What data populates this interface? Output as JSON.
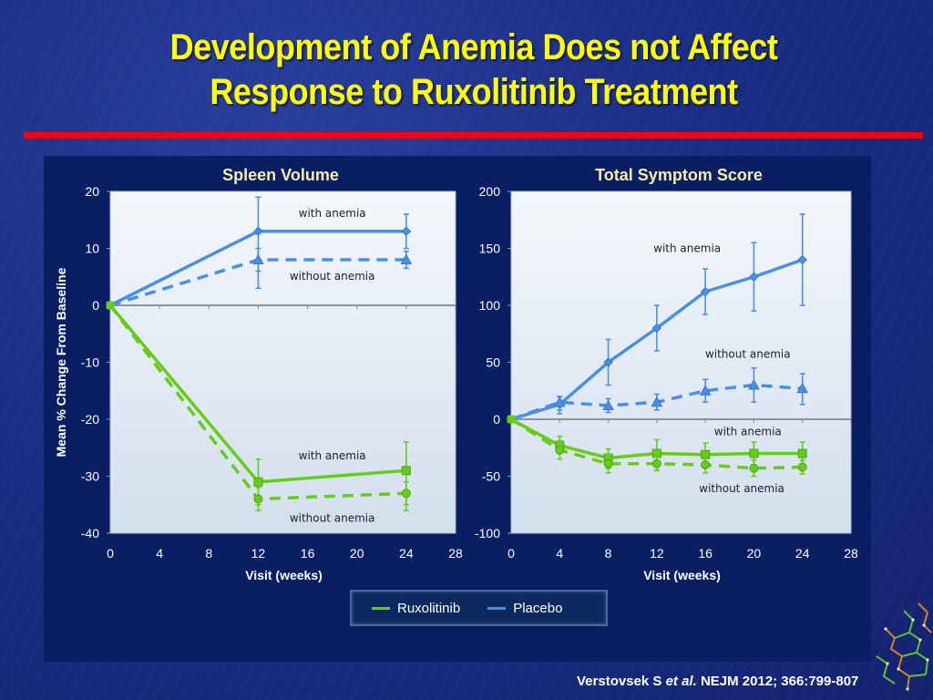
{
  "slide": {
    "title_line1": "Development of Anemia Does not Affect",
    "title_line2": "Response to Ruxolitinib Treatment",
    "citation_author": "Verstovsek S",
    "citation_etal": "et al.",
    "citation_journal": "NEJM 2012; 366:799-807",
    "colors": {
      "background": "#1b2e86",
      "title": "#ffff00",
      "rule": "#ff0000",
      "ruxolitinib": "#66cc1a",
      "placebo": "#4a90e2",
      "chart_title": "#f5eeb0"
    }
  },
  "legend": {
    "items": [
      {
        "label": "Ruxolitinib",
        "color": "#66cc1a"
      },
      {
        "label": "Placebo",
        "color": "#4a90e2"
      }
    ]
  },
  "chart_data": [
    {
      "type": "line",
      "title": "Spleen Volume",
      "xlabel": "Visit (weeks)",
      "ylabel": "Mean % Change From Baseline",
      "xlim": [
        0,
        28
      ],
      "ylim": [
        -40,
        20
      ],
      "xticks": [
        0,
        4,
        8,
        12,
        16,
        20,
        24,
        28
      ],
      "yticks": [
        20,
        10,
        0,
        -10,
        -20,
        -30,
        -40
      ],
      "series": [
        {
          "name": "Placebo with anemia",
          "group": "Placebo",
          "style": "solid",
          "marker": "diamond",
          "x": [
            0,
            12,
            24
          ],
          "y": [
            0,
            13,
            13
          ],
          "err_low": [
            0,
            3,
            10
          ],
          "err_high": [
            0,
            19,
            16
          ]
        },
        {
          "name": "Placebo without anemia",
          "group": "Placebo",
          "style": "dashed",
          "marker": "triangle",
          "x": [
            0,
            12,
            24
          ],
          "y": [
            0,
            8,
            8
          ],
          "err_low": [
            0,
            6,
            6.5
          ],
          "err_high": [
            0,
            10,
            9.5
          ]
        },
        {
          "name": "Ruxolitinib with anemia",
          "group": "Ruxolitinib",
          "style": "solid",
          "marker": "square",
          "x": [
            0,
            12,
            24
          ],
          "y": [
            0,
            -31,
            -29
          ],
          "err_low": [
            0,
            -35,
            -35
          ],
          "err_high": [
            0,
            -27,
            -24
          ]
        },
        {
          "name": "Ruxolitinib without anemia",
          "group": "Ruxolitinib",
          "style": "dashed",
          "marker": "circle",
          "x": [
            0,
            12,
            24
          ],
          "y": [
            0,
            -34,
            -33
          ],
          "err_low": [
            0,
            -36,
            -36
          ],
          "err_high": [
            0,
            -32,
            -31
          ]
        }
      ],
      "annotations": [
        {
          "text": "with anemia",
          "x": 18,
          "y": 15.5
        },
        {
          "text": "without anemia",
          "x": 18,
          "y": 4.5
        },
        {
          "text": "with anemia",
          "x": 18,
          "y": -27
        },
        {
          "text": "without anemia",
          "x": 18,
          "y": -38
        }
      ],
      "grid": false,
      "legend": "bottom-center"
    },
    {
      "type": "line",
      "title": "Total Symptom Score",
      "xlabel": "Visit (weeks)",
      "ylabel": "",
      "xlim": [
        0,
        28
      ],
      "ylim": [
        -100,
        200
      ],
      "xticks": [
        0,
        4,
        8,
        12,
        16,
        20,
        24,
        28
      ],
      "yticks": [
        200,
        150,
        100,
        50,
        0,
        -50,
        -100
      ],
      "series": [
        {
          "name": "Placebo with anemia",
          "group": "Placebo",
          "style": "solid",
          "marker": "diamond",
          "x": [
            0,
            4,
            8,
            12,
            16,
            20,
            24
          ],
          "y": [
            0,
            13,
            50,
            80,
            112,
            125,
            140
          ],
          "err_low": [
            0,
            5,
            30,
            60,
            92,
            95,
            100
          ],
          "err_high": [
            0,
            20,
            70,
            100,
            132,
            155,
            180
          ]
        },
        {
          "name": "Placebo without anemia",
          "group": "Placebo",
          "style": "dashed",
          "marker": "triangle",
          "x": [
            0,
            4,
            8,
            12,
            16,
            20,
            24
          ],
          "y": [
            0,
            15,
            12,
            15,
            25,
            30,
            27
          ],
          "err_low": [
            0,
            8,
            6,
            8,
            15,
            15,
            13
          ],
          "err_high": [
            0,
            20,
            18,
            22,
            35,
            45,
            40
          ]
        },
        {
          "name": "Ruxolitinib with anemia",
          "group": "Ruxolitinib",
          "style": "solid",
          "marker": "square",
          "x": [
            0,
            4,
            8,
            12,
            16,
            20,
            24
          ],
          "y": [
            0,
            -23,
            -34,
            -30,
            -31,
            -30,
            -30
          ],
          "err_low": [
            0,
            -30,
            -43,
            -42,
            -41,
            -40,
            -40
          ],
          "err_high": [
            0,
            -15,
            -26,
            -18,
            -21,
            -20,
            -20
          ]
        },
        {
          "name": "Ruxolitinib without anemia",
          "group": "Ruxolitinib",
          "style": "dashed",
          "marker": "circle",
          "x": [
            0,
            4,
            8,
            12,
            16,
            20,
            24
          ],
          "y": [
            0,
            -27,
            -39,
            -39,
            -40,
            -43,
            -42
          ],
          "err_low": [
            0,
            -35,
            -47,
            -45,
            -47,
            -50,
            -48
          ],
          "err_high": [
            0,
            -19,
            -31,
            -33,
            -33,
            -36,
            -36
          ]
        }
      ],
      "annotations": [
        {
          "text": "with anemia",
          "x": 14.5,
          "y": 147
        },
        {
          "text": "without anemia",
          "x": 19.5,
          "y": 54
        },
        {
          "text": "with anemia",
          "x": 19.5,
          "y": -14
        },
        {
          "text": "without anemia",
          "x": 19,
          "y": -64
        }
      ],
      "grid": false,
      "legend": "bottom-center"
    }
  ]
}
